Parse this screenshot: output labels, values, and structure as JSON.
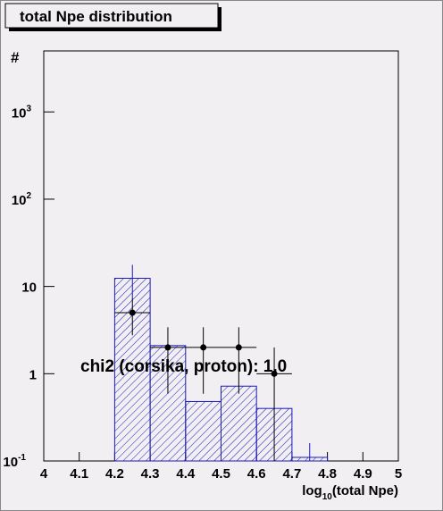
{
  "chart_data": {
    "type": "histogram",
    "title": "total Npe distribution",
    "annotation": "chi2 (corsika, proton): 1.0",
    "ylabel": "#",
    "xlabel": [
      "log",
      "10",
      "(total Npe)"
    ],
    "log_y": true,
    "xlim": [
      4,
      5
    ],
    "xticks": [
      4,
      4.1,
      4.2,
      4.3,
      4.4,
      4.5,
      4.6,
      4.7,
      4.8,
      4.9,
      5
    ],
    "ylim": [
      0.1,
      5000
    ],
    "yticks": [
      {
        "value": 0.1,
        "label": "10",
        "exponent": "-1"
      },
      1,
      10,
      {
        "value": 100,
        "label": "10",
        "exponent": "2"
      },
      {
        "value": 1000,
        "label": "10",
        "exponent": "3"
      }
    ],
    "histogram": {
      "color": "#1a1ab8",
      "bins": [
        4,
        4.1,
        4.2,
        4.3,
        4.4,
        4.5,
        4.6,
        4.7,
        4.8,
        4.9,
        5
      ],
      "values": [
        0,
        0,
        12.4,
        2.1,
        0.48,
        0.72,
        0.4,
        0.11,
        0,
        0
      ],
      "errors": [
        null,
        null,
        5.3,
        null,
        null,
        null,
        null,
        0.05,
        null,
        null
      ]
    },
    "points": {
      "color": "#000000",
      "x": [
        4.25,
        4.35,
        4.45,
        4.55,
        4.65
      ],
      "values": [
        5,
        2,
        2,
        2,
        1
      ],
      "errors": [
        2.24,
        1.41,
        1.41,
        1.41,
        1
      ],
      "xerrors": [
        0.05,
        0.05,
        0.05,
        0.05,
        0.05
      ]
    }
  }
}
